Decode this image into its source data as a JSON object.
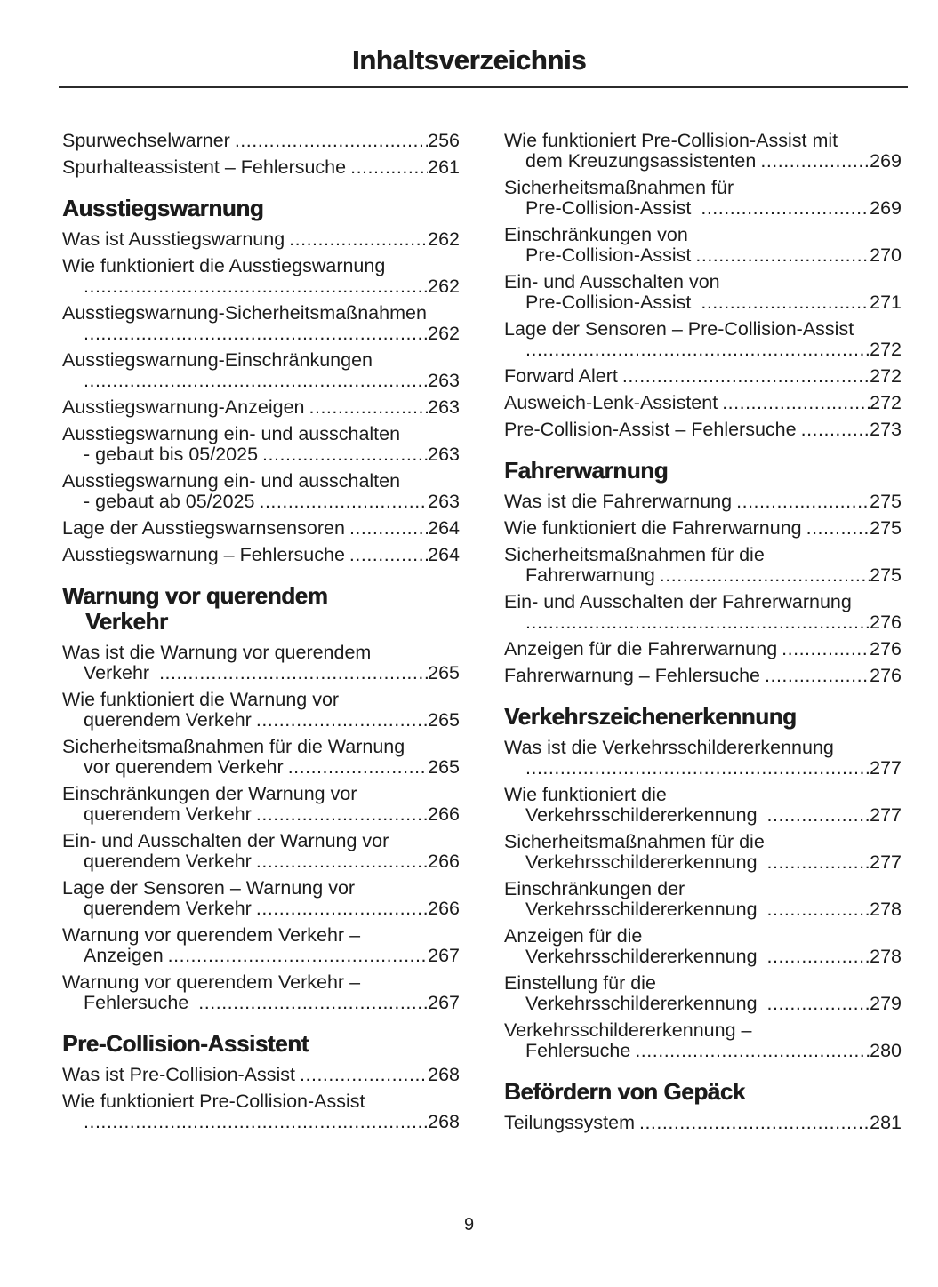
{
  "header": {
    "title": "Inhaltsverzeichnis"
  },
  "footer": {
    "page_number": "9"
  },
  "colors": {
    "text": "#1c1c1c",
    "background": "#ffffff",
    "divider": "#2b2b2b"
  },
  "toc": {
    "left_column": [
      {
        "type": "entry",
        "lines": [
          "Spurwechselwarner"
        ],
        "page": "256"
      },
      {
        "type": "entry",
        "lines": [
          "Spurhalteassistent – Fehlersuche"
        ],
        "page": "261"
      },
      {
        "type": "heading",
        "lines": [
          "Ausstiegswarnung"
        ]
      },
      {
        "type": "entry",
        "lines": [
          "Was ist Ausstiegswarnung"
        ],
        "page": "262"
      },
      {
        "type": "entry",
        "lines": [
          "Wie funktioniert die Ausstiegswarnung",
          ""
        ],
        "page": "262"
      },
      {
        "type": "entry",
        "lines": [
          "Ausstiegswarnung-Sicherheitsmaßnahmen",
          ""
        ],
        "page": "262"
      },
      {
        "type": "entry",
        "lines": [
          "Ausstiegswarnung-Einschränkungen",
          ""
        ],
        "page": "263"
      },
      {
        "type": "entry",
        "lines": [
          "Ausstiegswarnung-Anzeigen"
        ],
        "page": "263"
      },
      {
        "type": "entry",
        "lines": [
          "Ausstiegswarnung ein- und ausschalten",
          "- gebaut bis 05/2025"
        ],
        "page": "263"
      },
      {
        "type": "entry",
        "lines": [
          "Ausstiegswarnung ein- und ausschalten",
          "- gebaut ab 05/2025"
        ],
        "page": "263"
      },
      {
        "type": "entry",
        "lines": [
          "Lage der Ausstiegswarnsensoren"
        ],
        "page": "264"
      },
      {
        "type": "entry",
        "lines": [
          "Ausstiegswarnung – Fehlersuche"
        ],
        "page": "264"
      },
      {
        "type": "heading",
        "lines": [
          "Warnung vor querendem",
          "Verkehr"
        ]
      },
      {
        "type": "entry",
        "lines": [
          "Was ist die Warnung vor querendem",
          "Verkehr "
        ],
        "page": "265"
      },
      {
        "type": "entry",
        "lines": [
          "Wie funktioniert die Warnung vor",
          "querendem Verkehr"
        ],
        "page": "265"
      },
      {
        "type": "entry",
        "lines": [
          "Sicherheitsmaßnahmen für die Warnung",
          "vor querendem Verkehr"
        ],
        "page": "265"
      },
      {
        "type": "entry",
        "lines": [
          "Einschränkungen der Warnung vor",
          "querendem Verkehr"
        ],
        "page": "266"
      },
      {
        "type": "entry",
        "lines": [
          "Ein- und Ausschalten der Warnung vor",
          "querendem Verkehr"
        ],
        "page": "266"
      },
      {
        "type": "entry",
        "lines": [
          "Lage der Sensoren – Warnung vor",
          "querendem Verkehr"
        ],
        "page": "266"
      },
      {
        "type": "entry",
        "lines": [
          "Warnung vor querendem Verkehr –",
          "Anzeigen"
        ],
        "page": "267"
      },
      {
        "type": "entry",
        "lines": [
          "Warnung vor querendem Verkehr –",
          "Fehlersuche "
        ],
        "page": "267"
      },
      {
        "type": "heading",
        "lines": [
          "Pre-Collision-Assistent"
        ]
      },
      {
        "type": "entry",
        "lines": [
          "Was ist Pre-Collision-Assist"
        ],
        "page": "268"
      },
      {
        "type": "entry",
        "lines": [
          "Wie funktioniert Pre-Collision-Assist",
          ""
        ],
        "page": "268"
      }
    ],
    "right_column": [
      {
        "type": "entry",
        "lines": [
          "Wie funktioniert Pre-Collision-Assist mit",
          "dem Kreuzungsassistenten"
        ],
        "page": "269"
      },
      {
        "type": "entry",
        "lines": [
          "Sicherheitsmaßnahmen für",
          "Pre-Collision-Assist "
        ],
        "page": "269"
      },
      {
        "type": "entry",
        "lines": [
          "Einschränkungen von",
          "Pre-Collision-Assist"
        ],
        "page": "270"
      },
      {
        "type": "entry",
        "lines": [
          "Ein- und Ausschalten von",
          "Pre-Collision-Assist "
        ],
        "page": "271"
      },
      {
        "type": "entry",
        "lines": [
          "Lage der Sensoren – Pre-Collision-Assist",
          ""
        ],
        "page": "272"
      },
      {
        "type": "entry",
        "lines": [
          "Forward Alert"
        ],
        "page": "272"
      },
      {
        "type": "entry",
        "lines": [
          "Ausweich-Lenk-Assistent"
        ],
        "page": "272"
      },
      {
        "type": "entry",
        "lines": [
          "Pre-Collision-Assist – Fehlersuche"
        ],
        "page": "273"
      },
      {
        "type": "heading",
        "lines": [
          "Fahrerwarnung"
        ]
      },
      {
        "type": "entry",
        "lines": [
          "Was ist die Fahrerwarnung"
        ],
        "page": "275"
      },
      {
        "type": "entry",
        "lines": [
          "Wie funktioniert die Fahrerwarnung"
        ],
        "page": "275"
      },
      {
        "type": "entry",
        "lines": [
          "Sicherheitsmaßnahmen für die",
          "Fahrerwarnung"
        ],
        "page": "275"
      },
      {
        "type": "entry",
        "lines": [
          "Ein- und Ausschalten der Fahrerwarnung",
          ""
        ],
        "page": "276"
      },
      {
        "type": "entry",
        "lines": [
          "Anzeigen für die Fahrerwarnung"
        ],
        "page": "276"
      },
      {
        "type": "entry",
        "lines": [
          "Fahrerwarnung – Fehlersuche"
        ],
        "page": "276"
      },
      {
        "type": "heading",
        "lines": [
          "Verkehrszeichenerkennung"
        ]
      },
      {
        "type": "entry",
        "lines": [
          "Was ist die Verkehrsschildererkennung",
          ""
        ],
        "page": "277"
      },
      {
        "type": "entry",
        "lines": [
          "Wie funktioniert die",
          "Verkehrsschildererkennung "
        ],
        "page": "277"
      },
      {
        "type": "entry",
        "lines": [
          "Sicherheitsmaßnahmen für die",
          "Verkehrsschildererkennung "
        ],
        "page": "277"
      },
      {
        "type": "entry",
        "lines": [
          "Einschränkungen der",
          "Verkehrsschildererkennung "
        ],
        "page": "278"
      },
      {
        "type": "entry",
        "lines": [
          "Anzeigen für die",
          "Verkehrsschildererkennung "
        ],
        "page": "278"
      },
      {
        "type": "entry",
        "lines": [
          "Einstellung für die",
          "Verkehrsschildererkennung "
        ],
        "page": "279"
      },
      {
        "type": "entry",
        "lines": [
          "Verkehrsschildererkennung –",
          "Fehlersuche"
        ],
        "page": "280"
      },
      {
        "type": "heading",
        "lines": [
          "Befördern von Gepäck"
        ]
      },
      {
        "type": "entry",
        "lines": [
          "Teilungssystem"
        ],
        "page": "281"
      }
    ]
  }
}
